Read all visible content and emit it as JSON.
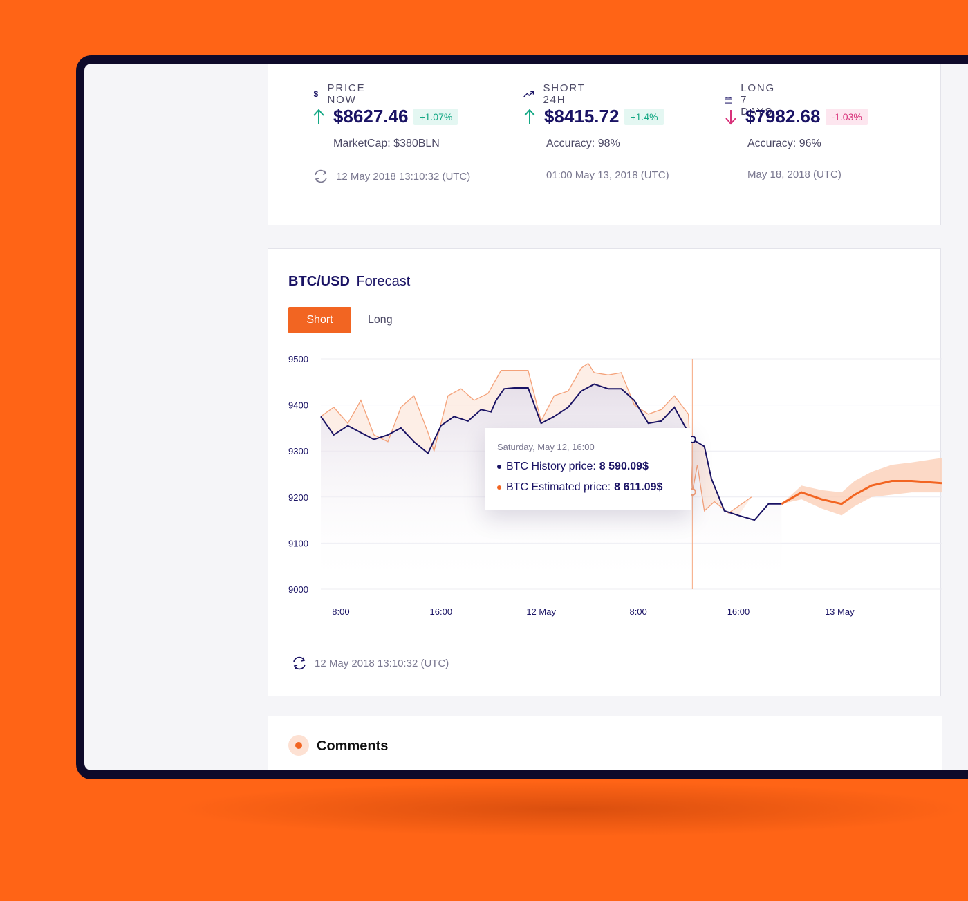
{
  "colors": {
    "background": "#ff6416",
    "navy": "#1a1364",
    "accent": "#f26522",
    "positive": "#15a885",
    "negative": "#d8327a"
  },
  "stats": [
    {
      "icon": "dollar-icon",
      "label": "PRICE NOW",
      "trend": "up",
      "price": "$8627.46",
      "change": "+1.07%",
      "sub": "MarketCap: $380BLN",
      "time": "12 May 2018 13:10:32 (UTC)"
    },
    {
      "icon": "trend-up-icon",
      "label": "SHORT 24H",
      "trend": "up",
      "price": "$8415.72",
      "change": "+1.4%",
      "sub": "Accuracy: 98%",
      "time": "01:00 May 13, 2018 (UTC)"
    },
    {
      "icon": "calendar-icon",
      "label": "LONG 7 DAYS",
      "trend": "down",
      "price": "$7982.68",
      "change": "-1.03%",
      "sub": "Accuracy: 96%",
      "time": "May 18, 2018 (UTC)"
    }
  ],
  "forecast": {
    "pair": "BTC/USD",
    "subtitle": "Forecast",
    "tabs": {
      "active": "Short",
      "inactive": "Long"
    },
    "updated": "12 May 2018 13:10:32 (UTC)",
    "tooltip": {
      "date": "Saturday, May 12, 16:00",
      "history_label": "BTC History price:",
      "history_value": "8 590.09$",
      "estimated_label": "BTC Estimated price:",
      "estimated_value": "8 611.09$"
    }
  },
  "chart_data": {
    "type": "line",
    "ylim": [
      9000,
      9500
    ],
    "yticks": [
      "9500",
      "9400",
      "9300",
      "9200",
      "9100",
      "9000"
    ],
    "xticks": [
      "8:00",
      "16:00",
      "12 May",
      "8:00",
      "16:00",
      "13 May"
    ],
    "xlim": [
      0,
      62
    ],
    "x_tick_positions": [
      2,
      12,
      22,
      31.7,
      41.7,
      51.8
    ],
    "cursor_x": 37.1,
    "series": [
      {
        "name": "BTC History price",
        "x": [
          0,
          1.3,
          2.7,
          4,
          5.3,
          6.7,
          8,
          9.3,
          10.7,
          12,
          13.3,
          14.7,
          16,
          17,
          17.5,
          18.3,
          19.3,
          20.7,
          22,
          23.3,
          24.7,
          26,
          27.3,
          28.7,
          30,
          31.3,
          32.7,
          34,
          35.3,
          36.7,
          37.1,
          38.3,
          39,
          40.3,
          41.7,
          43.3,
          44.7,
          46
        ],
        "y": [
          9375,
          9335,
          9355,
          9340,
          9325,
          9335,
          9350,
          9320,
          9295,
          9355,
          9375,
          9365,
          9390,
          9385,
          9410,
          9435,
          9437,
          9437,
          9360,
          9375,
          9395,
          9430,
          9445,
          9435,
          9435,
          9410,
          9360,
          9365,
          9395,
          9340,
          9325,
          9310,
          9240,
          9170,
          9160,
          9150,
          9185,
          9185
        ]
      },
      {
        "name": "BTC Estimated price",
        "x": [
          0,
          1.3,
          2.7,
          4,
          5.3,
          6.7,
          8,
          9.3,
          10.7,
          11.3,
          12.7,
          14,
          15.3,
          16.7,
          18,
          19.3,
          20.7,
          22,
          23.3,
          24.7,
          26,
          26.7,
          27.3,
          28.7,
          30,
          31.3,
          32.7,
          34,
          35.3,
          36.7,
          37.1,
          37.6,
          38.3,
          39.3,
          40.7,
          41.7,
          43
        ],
        "y": [
          9375,
          9395,
          9360,
          9410,
          9335,
          9320,
          9395,
          9420,
          9340,
          9300,
          9420,
          9435,
          9410,
          9425,
          9475,
          9475,
          9475,
          9365,
          9420,
          9430,
          9480,
          9490,
          9470,
          9465,
          9470,
          9400,
          9380,
          9390,
          9420,
          9380,
          9211,
          9270,
          9170,
          9190,
          9165,
          9180,
          9200
        ]
      },
      {
        "name": "Forecast",
        "x": [
          46,
          48,
          50,
          52,
          53.3,
          55,
          57,
          59,
          62
        ],
        "y": [
          9185,
          9210,
          9195,
          9185,
          9205,
          9225,
          9235,
          9235,
          9230
        ],
        "band_low": [
          9185,
          9195,
          9175,
          9160,
          9180,
          9200,
          9205,
          9210,
          9210
        ],
        "band_high": [
          9185,
          9225,
          9215,
          9210,
          9235,
          9255,
          9270,
          9275,
          9285
        ]
      }
    ]
  },
  "comments": {
    "title": "Comments"
  }
}
